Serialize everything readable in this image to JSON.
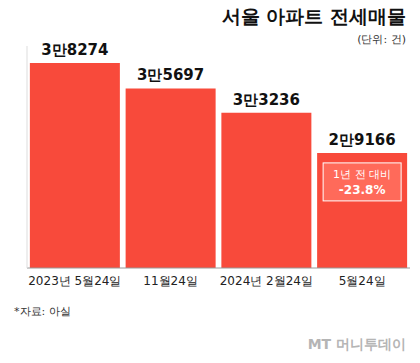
{
  "chart_data": {
    "type": "bar",
    "title": "서울 아파트 전세매물",
    "subtitle": "(단위: 건)",
    "categories": [
      "2023년 5월24일",
      "11월24일",
      "2024년 2월24일",
      "5월24일"
    ],
    "values": [
      38274,
      35697,
      33236,
      29166
    ],
    "value_labels": [
      "3만8274",
      "3만5697",
      "3만3236",
      "2만9166"
    ],
    "data_labels": true,
    "color": "#f84a3b",
    "ylim": [
      17500,
      40000
    ],
    "tick_labels": "x",
    "grid": false,
    "annotation": [
      "1년 전 대비",
      "-23.8%"
    ],
    "source": "*자료: 아실",
    "credit": "MT 머니투데이"
  }
}
